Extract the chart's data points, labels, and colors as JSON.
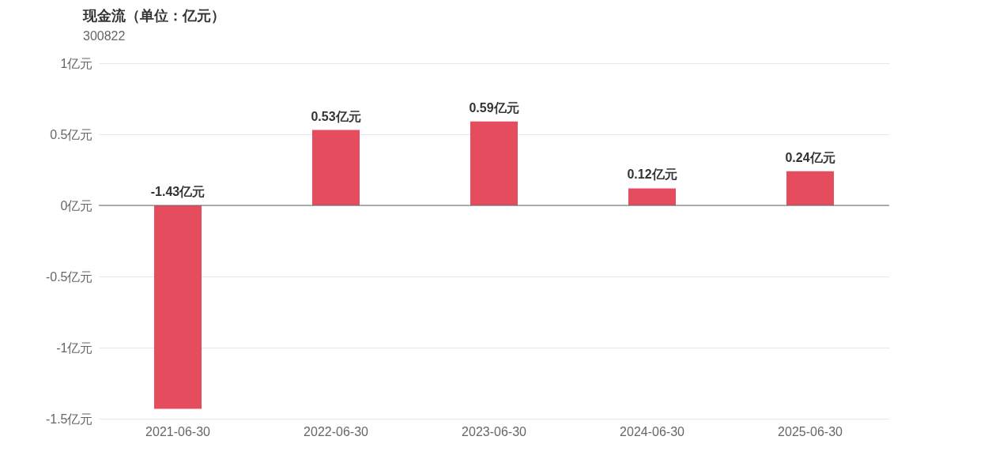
{
  "chart_data": {
    "type": "bar",
    "title": "现金流（单位：亿元）",
    "subtitle": "300822",
    "categories": [
      "2021-06-30",
      "2022-06-30",
      "2023-06-30",
      "2024-06-30",
      "2025-06-30"
    ],
    "values": [
      -1.43,
      0.53,
      0.59,
      0.12,
      0.24
    ],
    "value_labels": [
      "-1.43亿元",
      "0.53亿元",
      "0.59亿元",
      "0.12亿元",
      "0.24亿元"
    ],
    "color": "#e54d5f",
    "ylim": [
      -1.5,
      1
    ],
    "yticks": [
      {
        "value": -1.5,
        "label": "-1.5亿元"
      },
      {
        "value": -1,
        "label": "-1亿元"
      },
      {
        "value": -0.5,
        "label": "-0.5亿元"
      },
      {
        "value": 0,
        "label": "0亿元"
      },
      {
        "value": 0.5,
        "label": "0.5亿元"
      },
      {
        "value": 1,
        "label": "1亿元"
      }
    ],
    "grid": "y"
  }
}
